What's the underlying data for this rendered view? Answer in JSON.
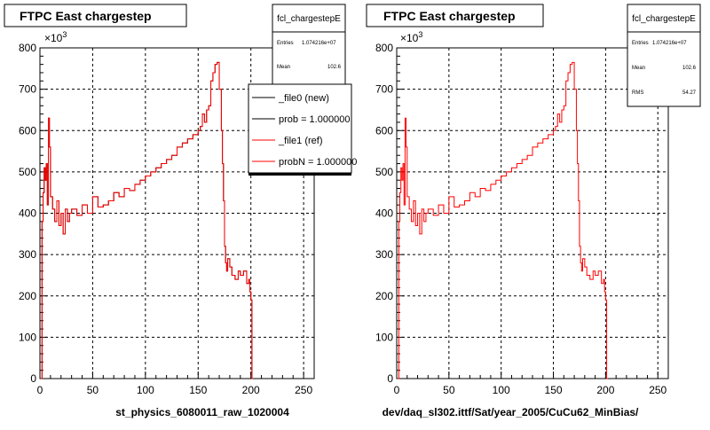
{
  "colors": {
    "data_line": "#ff0000",
    "ref_line": "#000000",
    "grid": "#000000",
    "frame": "#000000"
  },
  "panels": [
    {
      "title": "FTPC East chargestep",
      "xlabel": "st_physics_6080011_raw_1020004",
      "exponent_label": "×10",
      "exponent_power": "3",
      "stats": {
        "name": "fcl_chargestepE",
        "rows": [
          {
            "label": "Entries",
            "value": "1.074216e+07"
          },
          {
            "label": "Mean",
            "value": "102.6"
          }
        ]
      },
      "legend": {
        "entries": [
          {
            "label": "_file0 (new)",
            "color": "#000000"
          },
          {
            "label": "prob = 1.000000",
            "color": "#000000"
          },
          {
            "label": "_file1 (ref)",
            "color": "#ff0000"
          },
          {
            "label": "probN = 1.000000",
            "color": "#ff0000"
          }
        ]
      }
    },
    {
      "title": "FTPC East chargestep",
      "xlabel": "dev/daq_sl302.ittf/Sat/year_2005/CuCu62_MinBias/",
      "exponent_label": "×10",
      "exponent_power": "3",
      "stats": {
        "name": "fcl_chargestepE",
        "rows": [
          {
            "label": "Entries",
            "value": "1.074216e+07"
          },
          {
            "label": "Mean",
            "value": "102.6"
          },
          {
            "label": "RMS",
            "value": "54.27"
          }
        ]
      }
    }
  ],
  "chart_data": [
    {
      "type": "line",
      "title": "FTPC East chargestep",
      "xlabel": "st_physics_6080011_raw_1020004",
      "ylabel": "",
      "xlim": [
        0,
        260
      ],
      "ylim": [
        0,
        800
      ],
      "y_multiplier": "10^3",
      "grid": true,
      "legend_placement": "top-right",
      "x_ticks": [
        0,
        50,
        100,
        150,
        200,
        250
      ],
      "y_ticks": [
        0,
        100,
        200,
        300,
        400,
        500,
        600,
        700,
        800
      ],
      "series": [
        {
          "name": "_file1 (ref)",
          "x": [
            1,
            2,
            3,
            4,
            5,
            6,
            7,
            8,
            9,
            10,
            12,
            14,
            16,
            18,
            20,
            22,
            24,
            26,
            28,
            30,
            35,
            40,
            45,
            50,
            55,
            60,
            65,
            70,
            75,
            80,
            85,
            90,
            95,
            100,
            105,
            110,
            115,
            120,
            125,
            130,
            135,
            140,
            145,
            150,
            152,
            154,
            156,
            158,
            160,
            162,
            164,
            166,
            168,
            170,
            172,
            173,
            174,
            175,
            176,
            177,
            178,
            180,
            182,
            185,
            188,
            190,
            193,
            196,
            198,
            199,
            200,
            201,
            202
          ],
          "values": [
            0,
            380,
            450,
            510,
            480,
            520,
            420,
            630,
            560,
            440,
            410,
            380,
            430,
            370,
            400,
            350,
            410,
            380,
            400,
            410,
            395,
            420,
            400,
            440,
            415,
            420,
            430,
            450,
            440,
            460,
            455,
            470,
            480,
            490,
            500,
            510,
            520,
            530,
            540,
            560,
            570,
            580,
            590,
            600,
            610,
            640,
            620,
            650,
            660,
            720,
            740,
            760,
            765,
            700,
            600,
            520,
            430,
            320,
            280,
            260,
            290,
            270,
            250,
            240,
            260,
            250,
            260,
            230,
            240,
            210,
            190,
            0,
            0
          ]
        },
        {
          "name": "_file0 (new)",
          "x": [
            1,
            2,
            3,
            4,
            5,
            6,
            7,
            8,
            9,
            10,
            12,
            14,
            16,
            18,
            20,
            22,
            24,
            26,
            28,
            30,
            35,
            40,
            45,
            50,
            55,
            60,
            65,
            70,
            75,
            80,
            85,
            90,
            95,
            100,
            105,
            110,
            115,
            120,
            125,
            130,
            135,
            140,
            145,
            150,
            152,
            154,
            156,
            158,
            160,
            162,
            164,
            166,
            168,
            170,
            172,
            173,
            174,
            175,
            176,
            177,
            178,
            180,
            182,
            185,
            188,
            190,
            193,
            196,
            198,
            199,
            200,
            201,
            202
          ],
          "values": [
            0,
            380,
            450,
            510,
            480,
            520,
            420,
            630,
            560,
            440,
            410,
            380,
            430,
            370,
            400,
            350,
            410,
            380,
            400,
            410,
            395,
            420,
            400,
            440,
            415,
            420,
            430,
            450,
            440,
            460,
            455,
            470,
            480,
            490,
            500,
            510,
            520,
            530,
            540,
            560,
            570,
            580,
            590,
            600,
            610,
            640,
            620,
            650,
            660,
            720,
            740,
            760,
            765,
            700,
            600,
            520,
            430,
            320,
            280,
            260,
            290,
            270,
            250,
            240,
            260,
            250,
            260,
            230,
            240,
            210,
            190,
            0,
            0
          ]
        }
      ]
    },
    {
      "type": "line",
      "title": "FTPC East chargestep",
      "xlabel": "dev/daq_sl302.ittf/Sat/year_2005/CuCu62_MinBias/",
      "ylabel": "",
      "xlim": [
        0,
        260
      ],
      "ylim": [
        0,
        800
      ],
      "y_multiplier": "10^3",
      "grid": true,
      "x_ticks": [
        0,
        50,
        100,
        150,
        200,
        250
      ],
      "y_ticks": [
        0,
        100,
        200,
        300,
        400,
        500,
        600,
        700,
        800
      ],
      "series": [
        {
          "x": [
            1,
            2,
            3,
            4,
            5,
            6,
            7,
            8,
            9,
            10,
            12,
            14,
            16,
            18,
            20,
            22,
            24,
            26,
            28,
            30,
            35,
            40,
            45,
            50,
            55,
            60,
            65,
            70,
            75,
            80,
            85,
            90,
            95,
            100,
            105,
            110,
            115,
            120,
            125,
            130,
            135,
            140,
            145,
            150,
            152,
            154,
            156,
            158,
            160,
            162,
            164,
            166,
            168,
            170,
            172,
            173,
            174,
            175,
            176,
            177,
            178,
            180,
            182,
            185,
            188,
            190,
            193,
            196,
            198,
            199,
            200,
            201,
            202
          ],
          "values": [
            0,
            380,
            450,
            510,
            480,
            520,
            420,
            630,
            560,
            440,
            410,
            380,
            430,
            370,
            400,
            350,
            410,
            380,
            400,
            410,
            395,
            420,
            400,
            440,
            415,
            420,
            430,
            450,
            440,
            460,
            455,
            470,
            480,
            490,
            500,
            510,
            520,
            530,
            540,
            560,
            570,
            580,
            590,
            600,
            610,
            640,
            620,
            650,
            660,
            720,
            740,
            760,
            765,
            700,
            600,
            520,
            430,
            320,
            280,
            260,
            290,
            270,
            250,
            240,
            260,
            250,
            260,
            230,
            240,
            210,
            190,
            0,
            0
          ]
        }
      ]
    }
  ]
}
